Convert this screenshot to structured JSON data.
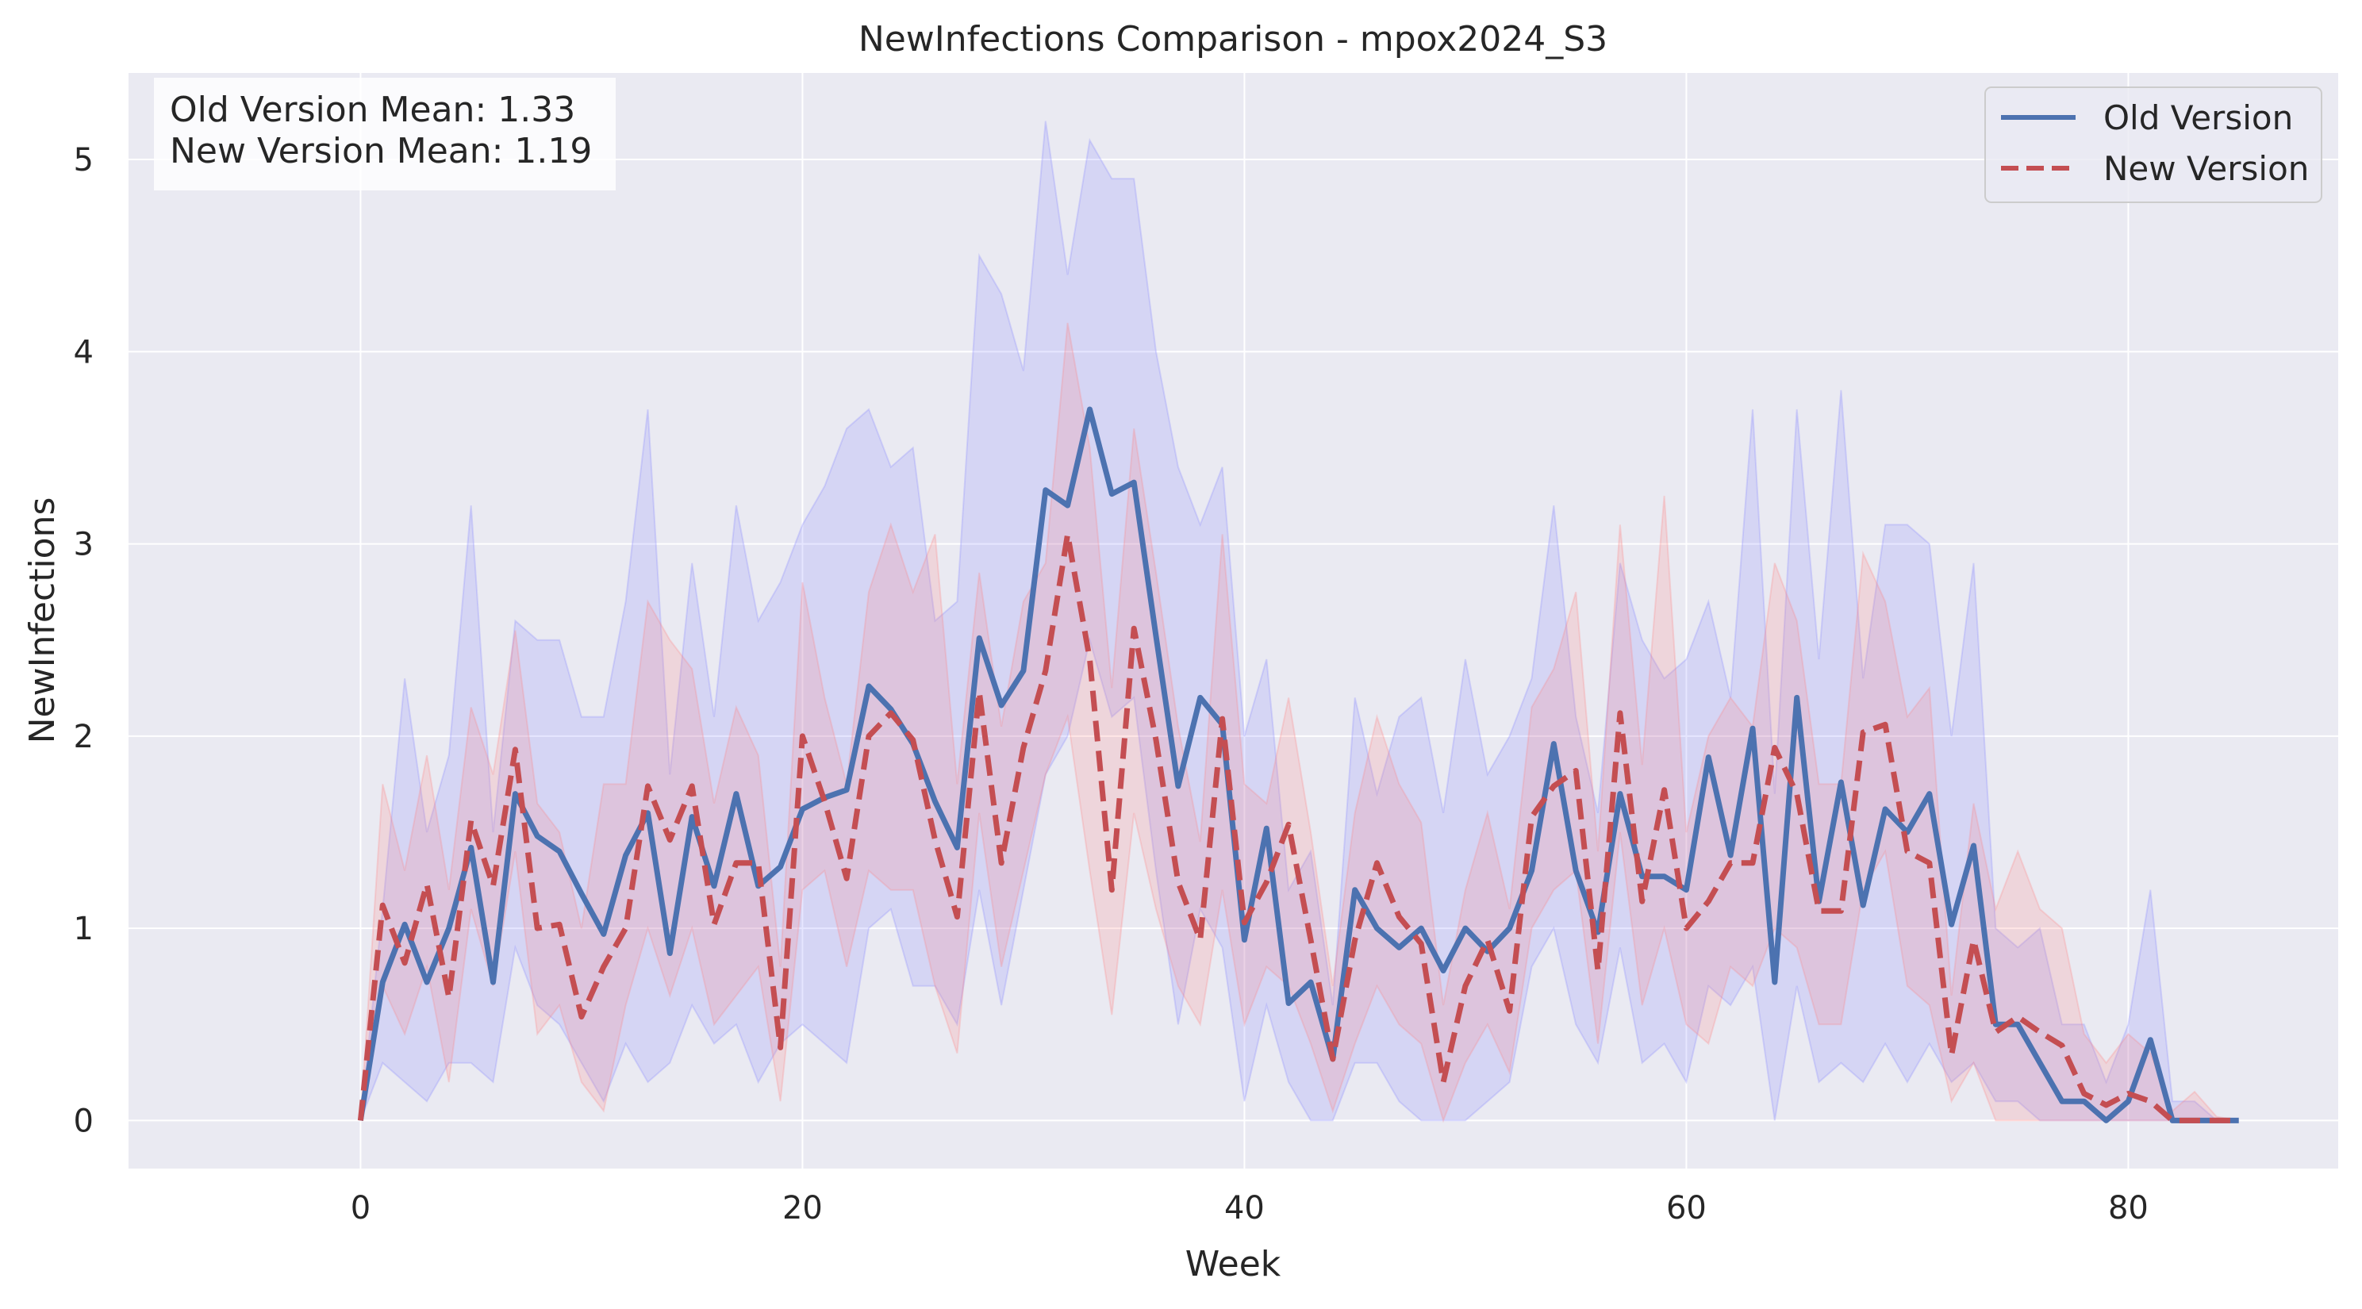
{
  "chart_data": {
    "type": "line",
    "title": "NewInfections Comparison - mpox2024_S3",
    "xlabel": "Week",
    "ylabel": "NewInfections",
    "xlim": [
      -10.5,
      89.5
    ],
    "ylim": [
      -0.25,
      5.45
    ],
    "xticks": [
      0,
      20,
      40,
      60,
      80
    ],
    "yticks": [
      0,
      1,
      2,
      3,
      4,
      5
    ],
    "grid": true,
    "legend_position": "top-right",
    "stats_box": [
      "Old Version Mean: 1.33",
      "New Version Mean: 1.19"
    ],
    "colors": {
      "background": "#eaeaf2",
      "grid": "#ffffff",
      "old_line": "#4c72b0",
      "new_line": "#c44e52",
      "old_band": "#8080ff",
      "new_band": "#ff8080"
    },
    "series": [
      {
        "name": "Old Version",
        "style": "solid",
        "values": [
          0,
          0.72,
          1.02,
          0.72,
          1.0,
          1.42,
          0.72,
          1.7,
          1.48,
          1.4,
          1.18,
          0.97,
          1.38,
          1.6,
          0.87,
          1.58,
          1.22,
          1.7,
          1.22,
          1.32,
          1.62,
          1.68,
          1.72,
          2.26,
          2.14,
          1.96,
          1.66,
          1.42,
          2.51,
          2.16,
          2.34,
          3.28,
          3.2,
          3.7,
          3.26,
          3.32,
          2.52,
          1.74,
          2.2,
          2.06,
          0.94,
          1.52,
          0.61,
          0.72,
          0.32,
          1.2,
          1.0,
          0.9,
          1.0,
          0.78,
          1.0,
          0.88,
          1.0,
          1.3,
          1.96,
          1.3,
          0.98,
          1.7,
          1.27,
          1.27,
          1.2,
          1.89,
          1.38,
          2.04,
          0.72,
          2.2,
          1.14,
          1.76,
          1.12,
          1.62,
          1.5,
          1.7,
          1.02,
          1.43,
          0.5,
          0.5,
          0.3,
          0.1,
          0.1,
          0,
          0.1,
          0.42,
          0,
          0,
          0,
          0
        ],
        "lower": [
          0,
          0.3,
          0.2,
          0.1,
          0.3,
          0.3,
          0.2,
          0.9,
          0.6,
          0.5,
          0.3,
          0.1,
          0.4,
          0.2,
          0.3,
          0.6,
          0.4,
          0.5,
          0.2,
          0.4,
          0.5,
          0.4,
          0.3,
          1.0,
          1.1,
          0.7,
          0.7,
          0.5,
          1.2,
          0.6,
          1.2,
          1.8,
          2.0,
          2.5,
          2.1,
          2.2,
          1.3,
          0.5,
          1.1,
          0.9,
          0.1,
          0.6,
          0.2,
          0,
          0,
          0.3,
          0.3,
          0.1,
          0,
          0,
          0,
          0.1,
          0.2,
          0.8,
          1.0,
          0.5,
          0.3,
          0.9,
          0.3,
          0.4,
          0.2,
          0.7,
          0.6,
          0.8,
          0,
          0.7,
          0.2,
          0.3,
          0.2,
          0.4,
          0.2,
          0.4,
          0.2,
          0.3,
          0.1,
          0.1,
          0,
          0,
          0,
          0,
          0,
          0,
          0,
          0,
          0,
          0
        ],
        "upper": [
          0,
          1.1,
          2.3,
          1.5,
          1.9,
          3.2,
          1.5,
          2.6,
          2.5,
          2.5,
          2.1,
          2.1,
          2.7,
          3.7,
          1.8,
          2.9,
          2.1,
          3.2,
          2.6,
          2.8,
          3.1,
          3.3,
          3.6,
          3.7,
          3.4,
          3.5,
          2.6,
          2.7,
          4.5,
          4.3,
          3.9,
          5.2,
          4.4,
          5.1,
          4.9,
          4.9,
          4.0,
          3.4,
          3.1,
          3.4,
          2.0,
          2.4,
          1.2,
          1.4,
          0.6,
          2.2,
          1.7,
          2.1,
          2.2,
          1.6,
          2.4,
          1.8,
          2.0,
          2.3,
          3.2,
          2.1,
          1.6,
          2.9,
          2.5,
          2.3,
          2.4,
          2.7,
          2.2,
          3.7,
          1.7,
          3.7,
          2.4,
          3.8,
          2.3,
          3.1,
          3.1,
          3.0,
          2.0,
          2.9,
          1.0,
          0.9,
          1.0,
          0.5,
          0.5,
          0.2,
          0.5,
          1.2,
          0.1,
          0.1,
          0,
          0
        ]
      },
      {
        "name": "New Version",
        "style": "dashed",
        "values": [
          0,
          1.12,
          0.82,
          1.23,
          0.64,
          1.56,
          1.22,
          1.93,
          1.0,
          1.02,
          0.54,
          0.8,
          1.0,
          1.74,
          1.46,
          1.74,
          1.02,
          1.34,
          1.34,
          0.38,
          2.0,
          1.66,
          1.26,
          2.0,
          2.12,
          1.98,
          1.46,
          1.06,
          2.23,
          1.34,
          1.94,
          2.34,
          3.05,
          2.4,
          1.2,
          2.56,
          1.98,
          1.24,
          0.94,
          2.09,
          1.03,
          1.24,
          1.54,
          0.94,
          0.32,
          0.94,
          1.34,
          1.06,
          0.92,
          0.2,
          0.7,
          0.94,
          0.57,
          1.58,
          1.74,
          1.82,
          0.78,
          2.12,
          1.14,
          1.72,
          1.0,
          1.14,
          1.34,
          1.34,
          1.94,
          1.7,
          1.09,
          1.09,
          2.02,
          2.06,
          1.4,
          1.34,
          0.34,
          0.94,
          0.46,
          0.54,
          0.46,
          0.39,
          0.14,
          0.08,
          0.14,
          0.1,
          0,
          0,
          0,
          0
        ],
        "lower": [
          0,
          0.7,
          0.45,
          0.8,
          0.2,
          1.1,
          0.7,
          1.4,
          0.45,
          0.6,
          0.2,
          0.05,
          0.6,
          1.0,
          0.65,
          1.0,
          0.5,
          0.65,
          0.8,
          0.1,
          1.2,
          1.3,
          0.8,
          1.3,
          1.2,
          1.2,
          0.7,
          0.35,
          1.6,
          0.8,
          1.3,
          1.8,
          2.1,
          1.3,
          0.55,
          1.6,
          1.1,
          0.7,
          0.5,
          1.2,
          0.5,
          0.8,
          0.7,
          0.4,
          0.05,
          0.4,
          0.7,
          0.5,
          0.4,
          0,
          0.3,
          0.5,
          0.25,
          1.0,
          1.2,
          1.3,
          0.4,
          1.5,
          0.6,
          1.0,
          0.5,
          0.4,
          0.8,
          0.7,
          1.0,
          0.9,
          0.5,
          0.5,
          1.2,
          1.4,
          0.7,
          0.6,
          0.1,
          0.3,
          0,
          0,
          0,
          0,
          0,
          0,
          0,
          0,
          0,
          0,
          0,
          0
        ],
        "upper": [
          0,
          1.75,
          1.3,
          1.9,
          1.2,
          2.15,
          1.8,
          2.55,
          1.65,
          1.5,
          1.0,
          1.75,
          1.75,
          2.7,
          2.5,
          2.35,
          1.65,
          2.15,
          1.9,
          0.8,
          2.8,
          2.2,
          1.75,
          2.75,
          3.1,
          2.75,
          3.05,
          1.75,
          2.85,
          2.05,
          2.7,
          2.9,
          4.15,
          3.5,
          2.25,
          3.6,
          2.85,
          2.05,
          1.45,
          3.05,
          1.75,
          1.65,
          2.2,
          1.5,
          0.7,
          1.6,
          2.1,
          1.75,
          1.55,
          0.6,
          1.2,
          1.6,
          1.1,
          2.15,
          2.35,
          2.75,
          1.4,
          3.1,
          1.85,
          3.25,
          1.5,
          2.0,
          2.2,
          2.05,
          2.9,
          2.6,
          1.75,
          1.75,
          2.95,
          2.7,
          2.1,
          2.25,
          0.65,
          1.65,
          1.1,
          1.4,
          1.1,
          1.0,
          0.45,
          0.3,
          0.45,
          0.35,
          0.05,
          0.15,
          0.02,
          0
        ]
      }
    ]
  }
}
